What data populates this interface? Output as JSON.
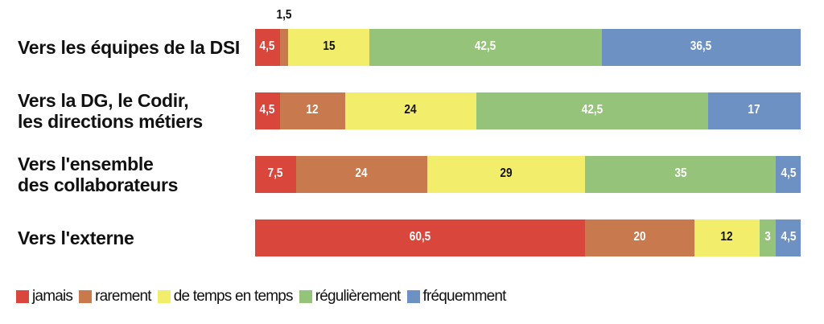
{
  "chart_data": {
    "type": "stacked-bar-horizontal",
    "categories": [
      "Vers les équipes de la DSI",
      "Vers la DG, le Codir,\nles directions métiers",
      "Vers l'ensemble\ndes collaborateurs",
      "Vers l'externe"
    ],
    "xlim": [
      0,
      100
    ],
    "series": [
      {
        "name": "jamais",
        "color": "#d9463b",
        "values": [
          4.5,
          4.5,
          7.5,
          60.5
        ],
        "value_labels": [
          "4,5",
          "4,5",
          "7,5",
          "60,5"
        ]
      },
      {
        "name": "rarement",
        "color": "#c87a4e",
        "values": [
          1.5,
          12,
          24,
          20
        ],
        "value_labels": [
          "1,5",
          "12",
          "24",
          "20"
        ]
      },
      {
        "name": "de temps en temps",
        "color": "#f2ee6c",
        "values": [
          15,
          24,
          29,
          12
        ],
        "value_labels": [
          "15",
          "24",
          "29",
          "12"
        ]
      },
      {
        "name": "régulièrement",
        "color": "#96c37a",
        "values": [
          42.5,
          42.5,
          35,
          3
        ],
        "value_labels": [
          "42,5",
          "42,5",
          "35",
          "3"
        ]
      },
      {
        "name": "fréquemment",
        "color": "#6c91c2",
        "values": [
          36.5,
          17,
          4.5,
          4.5
        ],
        "value_labels": [
          "36,5",
          "17",
          "4,5",
          "4,5"
        ]
      }
    ],
    "legend": "bottom-left"
  }
}
